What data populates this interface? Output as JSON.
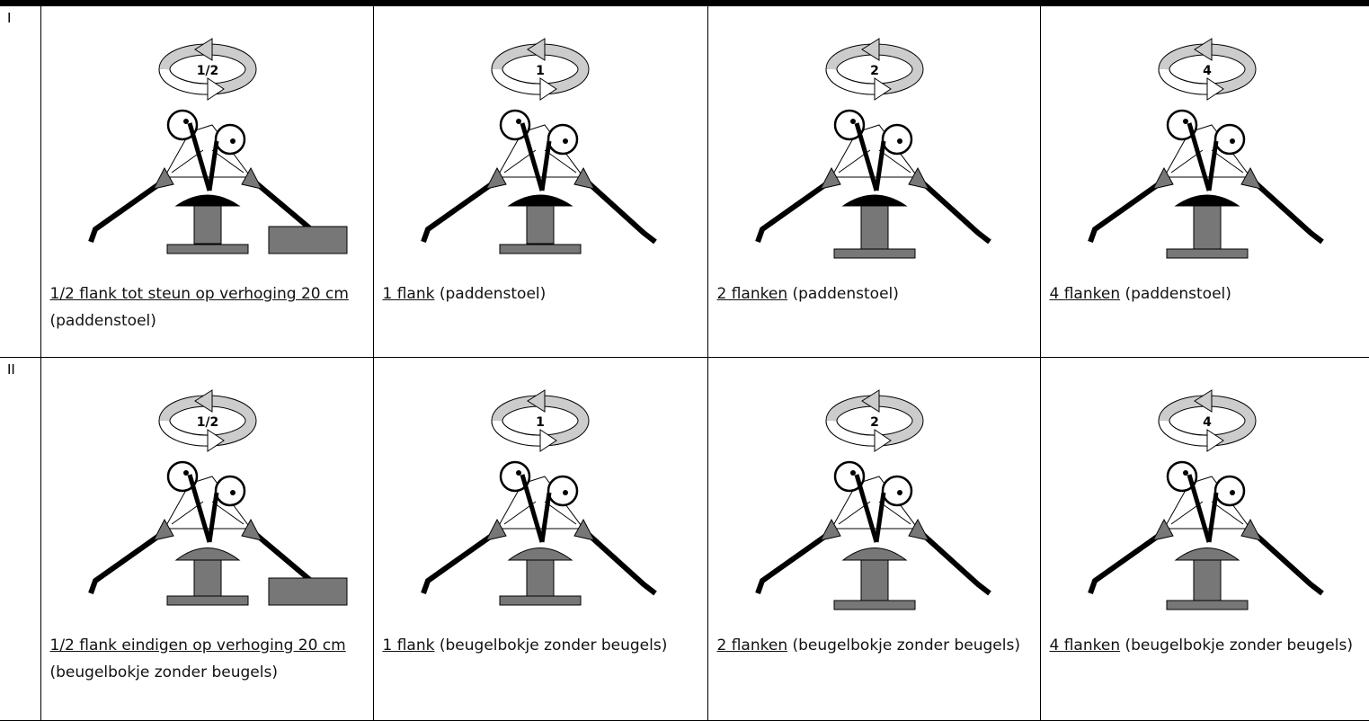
{
  "table": {
    "rows": [
      {
        "label": "I",
        "cells": [
          {
            "rotation": "1/2",
            "caption_link": "1/2 flank tot steun op verhoging 20 cm",
            "caption_rest": "(paddenstoel)"
          },
          {
            "rotation": "1",
            "caption_link": "1 flank",
            "caption_rest": "(paddenstoel)"
          },
          {
            "rotation": "2",
            "caption_link": "2 flanken",
            "caption_rest": "(paddenstoel)"
          },
          {
            "rotation": "4",
            "caption_link": "4 flanken",
            "caption_rest": "(paddenstoel)"
          }
        ]
      },
      {
        "label": "II",
        "cells": [
          {
            "rotation": "1/2",
            "caption_link": "1/2 flank eindigen op verhoging 20 cm",
            "caption_rest": "(beugelbokje zonder beugels)"
          },
          {
            "rotation": "1",
            "caption_link": "1 flank",
            "caption_rest": "(beugelbokje zonder beugels)"
          },
          {
            "rotation": "2",
            "caption_link": "2 flanken",
            "caption_rest": "(beugelbokje zonder beugels)"
          },
          {
            "rotation": "4",
            "caption_link": "4 flanken",
            "caption_rest": "(beugelbokje zonder beugels)"
          }
        ]
      }
    ]
  }
}
